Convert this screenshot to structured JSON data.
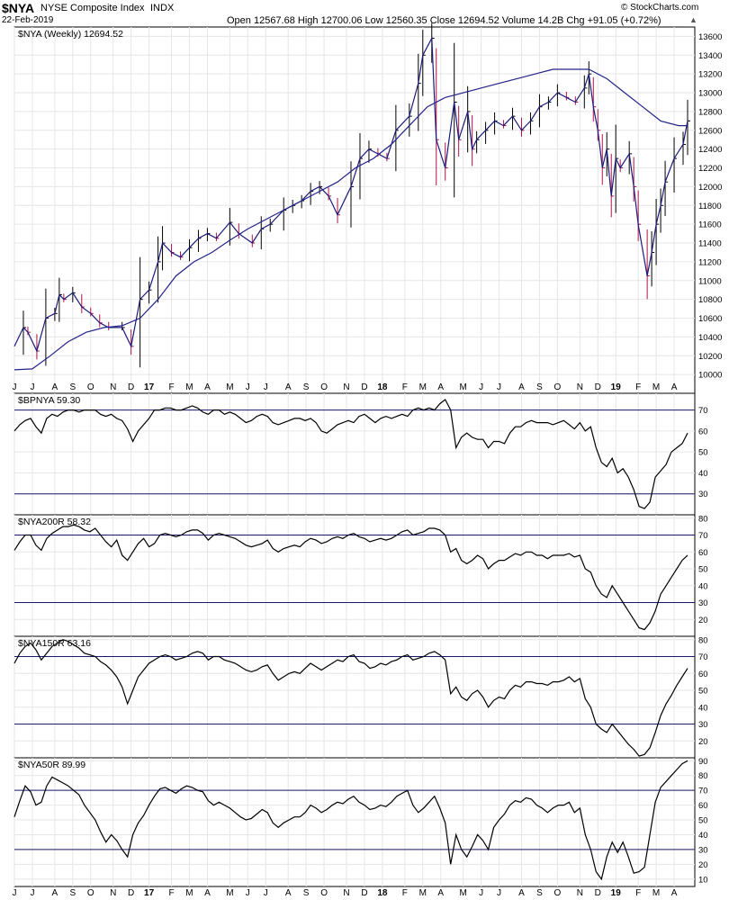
{
  "header": {
    "symbol": "$NYA",
    "name": "NYSE Composite Index",
    "exchange": "INDX",
    "date": "22-Feb-2019",
    "ohlc": "Open 12567.68  High 12700.06  Low 12560.35  Close 12694.52  Volume 14.2B  Chg +91.05 (+0.72%)",
    "credit": "© StockCharts.com",
    "direction_glyph": "▲"
  },
  "colors": {
    "price_line": "#1a1a7a",
    "ma_line": "#22228a",
    "up_bar": "#000000",
    "down_bar": "#b0124a",
    "grid": "#e6e6e6",
    "ref_line": "#1a1a6a"
  },
  "chart_data": [
    {
      "type": "line",
      "panel": "price",
      "label": "$NYA (Weekly) 12694.52",
      "ylim": [
        9800,
        13700
      ],
      "y_ticks": [
        10000,
        10200,
        10400,
        10600,
        10800,
        11000,
        11200,
        11400,
        11600,
        11800,
        12000,
        12200,
        12400,
        12600,
        12800,
        13000,
        13200,
        13400,
        13600
      ],
      "series": [
        {
          "name": "$NYA",
          "points": [
            [
              0,
              10300
            ],
            [
              2,
              10500
            ],
            [
              3,
              10450
            ],
            [
              5,
              10250
            ],
            [
              7,
              10600
            ],
            [
              9,
              10650
            ],
            [
              10,
              10850
            ],
            [
              11,
              10800
            ],
            [
              13,
              10870
            ],
            [
              15,
              10720
            ],
            [
              17,
              10650
            ],
            [
              19,
              10550
            ],
            [
              21,
              10500
            ],
            [
              24,
              10500
            ],
            [
              26,
              10300
            ],
            [
              28,
              10800
            ],
            [
              30,
              10900
            ],
            [
              32,
              11200
            ],
            [
              33,
              11400
            ],
            [
              35,
              11300
            ],
            [
              37,
              11250
            ],
            [
              39,
              11350
            ],
            [
              41,
              11450
            ],
            [
              43,
              11500
            ],
            [
              45,
              11450
            ],
            [
              48,
              11620
            ],
            [
              50,
              11500
            ],
            [
              53,
              11400
            ],
            [
              55,
              11550
            ],
            [
              57,
              11600
            ],
            [
              60,
              11750
            ],
            [
              62,
              11800
            ],
            [
              64,
              11850
            ],
            [
              66,
              11950
            ],
            [
              68,
              12000
            ],
            [
              70,
              11900
            ],
            [
              72,
              11700
            ],
            [
              75,
              12000
            ],
            [
              77,
              12300
            ],
            [
              79,
              12400
            ],
            [
              81,
              12350
            ],
            [
              83,
              12300
            ],
            [
              85,
              12600
            ],
            [
              88,
              12750
            ],
            [
              90,
              13100
            ],
            [
              91,
              13400
            ],
            [
              93,
              13580
            ],
            [
              94,
              12500
            ],
            [
              96,
              12200
            ],
            [
              98,
              12900
            ],
            [
              99,
              12500
            ],
            [
              101,
              12800
            ],
            [
              102,
              12400
            ],
            [
              103,
              12500
            ],
            [
              105,
              12600
            ],
            [
              107,
              12700
            ],
            [
              109,
              12650
            ],
            [
              111,
              12750
            ],
            [
              113,
              12600
            ],
            [
              115,
              12700
            ],
            [
              117,
              12850
            ],
            [
              119,
              12900
            ],
            [
              121,
              13000
            ],
            [
              123,
              12950
            ],
            [
              125,
              12900
            ],
            [
              127,
              13050
            ],
            [
              128,
              13200
            ],
            [
              129,
              12850
            ],
            [
              130,
              12600
            ],
            [
              131,
              12200
            ],
            [
              132,
              12400
            ],
            [
              133,
              11900
            ],
            [
              134,
              12300
            ],
            [
              135,
              12200
            ],
            [
              137,
              12350
            ],
            [
              138,
              12000
            ],
            [
              139,
              11600
            ],
            [
              141,
              11050
            ],
            [
              142,
              11300
            ],
            [
              143,
              11600
            ],
            [
              144,
              11800
            ],
            [
              145,
              12050
            ],
            [
              147,
              12300
            ],
            [
              149,
              12450
            ],
            [
              150,
              12700
            ]
          ]
        },
        {
          "name": "MA",
          "points": [
            [
              0,
              10050
            ],
            [
              4,
              10060
            ],
            [
              8,
              10200
            ],
            [
              12,
              10350
            ],
            [
              16,
              10450
            ],
            [
              20,
              10500
            ],
            [
              24,
              10520
            ],
            [
              28,
              10600
            ],
            [
              32,
              10800
            ],
            [
              36,
              11050
            ],
            [
              40,
              11200
            ],
            [
              44,
              11300
            ],
            [
              48,
              11430
            ],
            [
              52,
              11550
            ],
            [
              56,
              11650
            ],
            [
              60,
              11750
            ],
            [
              64,
              11850
            ],
            [
              68,
              11950
            ],
            [
              72,
              12050
            ],
            [
              76,
              12200
            ],
            [
              80,
              12300
            ],
            [
              84,
              12450
            ],
            [
              88,
              12650
            ],
            [
              92,
              12850
            ],
            [
              96,
              12950
            ],
            [
              100,
              13000
            ],
            [
              104,
              13050
            ],
            [
              108,
              13100
            ],
            [
              112,
              13150
            ],
            [
              116,
              13200
            ],
            [
              120,
              13250
            ],
            [
              124,
              13250
            ],
            [
              128,
              13250
            ],
            [
              132,
              13150
            ],
            [
              136,
              13000
            ],
            [
              140,
              12850
            ],
            [
              144,
              12700
            ],
            [
              148,
              12650
            ],
            [
              150,
              12650
            ]
          ]
        }
      ]
    },
    {
      "type": "line",
      "panel": "osc1",
      "label": "$BPNYA 59.30",
      "ylim": [
        20,
        78
      ],
      "y_ticks": [
        20,
        30,
        40,
        50,
        60,
        70
      ],
      "ref_lines": [
        30,
        70
      ],
      "values": [
        60,
        63,
        65,
        66,
        62,
        59,
        66,
        68,
        67,
        69,
        70,
        70,
        69,
        70,
        70,
        70,
        68,
        67,
        68,
        66,
        65,
        61,
        55,
        60,
        63,
        66,
        70,
        70,
        71,
        71,
        70,
        70,
        71,
        72,
        71,
        69,
        68,
        70,
        70,
        68,
        69,
        68,
        66,
        64,
        65,
        67,
        68,
        67,
        64,
        63,
        64,
        65,
        66,
        66,
        65,
        66,
        64,
        60,
        59,
        61,
        63,
        64,
        65,
        64,
        67,
        68,
        66,
        64,
        66,
        67,
        66,
        67,
        68,
        67,
        70,
        71,
        70,
        71,
        70,
        73,
        75,
        70,
        52,
        57,
        59,
        57,
        56,
        56,
        52,
        55,
        55,
        54,
        59,
        62,
        62,
        64,
        65,
        64,
        64,
        64,
        63,
        64,
        65,
        63,
        61,
        64,
        60,
        62,
        52,
        45,
        43,
        47,
        40,
        42,
        38,
        32,
        24,
        23,
        26,
        38,
        41,
        44,
        50,
        52,
        54,
        59
      ]
    },
    {
      "type": "line",
      "panel": "osc2",
      "label": "$NYA200R 58.32",
      "ylim": [
        10,
        82
      ],
      "y_ticks": [
        10,
        20,
        30,
        40,
        50,
        60,
        70,
        80
      ],
      "ref_lines": [
        30,
        70
      ],
      "values": [
        61,
        66,
        70,
        70,
        64,
        61,
        68,
        71,
        73,
        75,
        75,
        76,
        75,
        73,
        72,
        74,
        70,
        66,
        63,
        67,
        58,
        55,
        60,
        65,
        68,
        63,
        65,
        70,
        71,
        70,
        69,
        70,
        72,
        73,
        73,
        71,
        67,
        70,
        71,
        70,
        69,
        68,
        66,
        64,
        63,
        64,
        65,
        67,
        62,
        60,
        62,
        63,
        64,
        63,
        66,
        68,
        67,
        65,
        66,
        68,
        69,
        68,
        70,
        71,
        69,
        68,
        66,
        67,
        68,
        67,
        68,
        70,
        72,
        73,
        70,
        71,
        72,
        74,
        74,
        73,
        70,
        60,
        62,
        55,
        53,
        55,
        58,
        56,
        50,
        53,
        55,
        55,
        57,
        59,
        58,
        60,
        60,
        58,
        58,
        56,
        58,
        58,
        58,
        59,
        57,
        58,
        50,
        48,
        40,
        35,
        33,
        40,
        35,
        30,
        25,
        20,
        15,
        14,
        18,
        25,
        35,
        40,
        45,
        50,
        55,
        58
      ]
    },
    {
      "type": "line",
      "panel": "osc3",
      "label": "$NYA150R 63.16",
      "ylim": [
        10,
        82
      ],
      "y_ticks": [
        10,
        20,
        30,
        40,
        50,
        60,
        70,
        80
      ],
      "ref_lines": [
        30,
        70
      ],
      "values": [
        66,
        72,
        76,
        78,
        74,
        68,
        72,
        76,
        78,
        80,
        79,
        77,
        75,
        72,
        71,
        70,
        67,
        65,
        62,
        58,
        52,
        42,
        50,
        58,
        62,
        66,
        68,
        70,
        71,
        70,
        68,
        69,
        70,
        72,
        73,
        72,
        68,
        70,
        70,
        68,
        67,
        66,
        64,
        62,
        61,
        62,
        64,
        65,
        60,
        56,
        58,
        60,
        61,
        60,
        63,
        66,
        64,
        62,
        64,
        66,
        68,
        67,
        70,
        71,
        67,
        66,
        63,
        64,
        66,
        65,
        67,
        68,
        70,
        71,
        68,
        69,
        70,
        72,
        73,
        71,
        68,
        48,
        52,
        46,
        44,
        48,
        50,
        46,
        40,
        44,
        46,
        45,
        50,
        53,
        52,
        55,
        55,
        54,
        54,
        53,
        55,
        55,
        56,
        58,
        55,
        57,
        45,
        40,
        30,
        27,
        25,
        30,
        26,
        22,
        18,
        15,
        11,
        12,
        16,
        25,
        35,
        42,
        47,
        53,
        58,
        63
      ]
    },
    {
      "type": "line",
      "panel": "osc4",
      "label": "$NYA50R 89.99",
      "ylim": [
        5,
        92
      ],
      "y_ticks": [
        10,
        20,
        30,
        40,
        50,
        60,
        70,
        80,
        90
      ],
      "ref_lines": [
        30,
        70
      ],
      "values": [
        52,
        63,
        73,
        69,
        60,
        62,
        73,
        79,
        77,
        75,
        73,
        70,
        67,
        60,
        55,
        50,
        42,
        35,
        40,
        36,
        30,
        25,
        40,
        48,
        53,
        60,
        66,
        71,
        72,
        70,
        68,
        71,
        73,
        72,
        70,
        69,
        63,
        60,
        62,
        60,
        58,
        55,
        52,
        50,
        51,
        54,
        57,
        55,
        48,
        45,
        48,
        50,
        52,
        52,
        55,
        60,
        58,
        55,
        57,
        60,
        62,
        61,
        64,
        66,
        62,
        60,
        57,
        58,
        60,
        59,
        62,
        66,
        68,
        70,
        60,
        55,
        58,
        62,
        66,
        58,
        48,
        20,
        40,
        30,
        25,
        32,
        40,
        36,
        30,
        45,
        50,
        54,
        60,
        63,
        62,
        65,
        64,
        60,
        58,
        55,
        58,
        60,
        60,
        62,
        55,
        58,
        40,
        30,
        15,
        10,
        25,
        35,
        28,
        35,
        25,
        14,
        15,
        18,
        40,
        62,
        72,
        76,
        80,
        84,
        88,
        90
      ]
    }
  ],
  "x_axis": {
    "months": [
      {
        "t": 0,
        "label": "J"
      },
      {
        "t": 4,
        "label": "J"
      },
      {
        "t": 9,
        "label": "A"
      },
      {
        "t": 13,
        "label": "S"
      },
      {
        "t": 17,
        "label": "O"
      },
      {
        "t": 22,
        "label": "N"
      },
      {
        "t": 26,
        "label": "D"
      },
      {
        "t": 30,
        "label": "17",
        "bold": true
      },
      {
        "t": 35,
        "label": "F"
      },
      {
        "t": 39,
        "label": "M"
      },
      {
        "t": 43,
        "label": "A"
      },
      {
        "t": 48,
        "label": "M"
      },
      {
        "t": 52,
        "label": "J"
      },
      {
        "t": 56,
        "label": "J"
      },
      {
        "t": 61,
        "label": "A"
      },
      {
        "t": 65,
        "label": "S"
      },
      {
        "t": 69,
        "label": "O"
      },
      {
        "t": 74,
        "label": "N"
      },
      {
        "t": 78,
        "label": "D"
      },
      {
        "t": 82,
        "label": "18",
        "bold": true
      },
      {
        "t": 87,
        "label": "F"
      },
      {
        "t": 91,
        "label": "M"
      },
      {
        "t": 95,
        "label": "A"
      },
      {
        "t": 100,
        "label": "M"
      },
      {
        "t": 104,
        "label": "J"
      },
      {
        "t": 108,
        "label": "J"
      },
      {
        "t": 113,
        "label": "A"
      },
      {
        "t": 117,
        "label": "S"
      },
      {
        "t": 121,
        "label": "O"
      },
      {
        "t": 126,
        "label": "N"
      },
      {
        "t": 130,
        "label": "D"
      },
      {
        "t": 134,
        "label": "19",
        "bold": true
      },
      {
        "t": 139,
        "label": "F"
      },
      {
        "t": 143,
        "label": "M"
      },
      {
        "t": 147,
        "label": "A"
      }
    ],
    "t_max": 150
  }
}
